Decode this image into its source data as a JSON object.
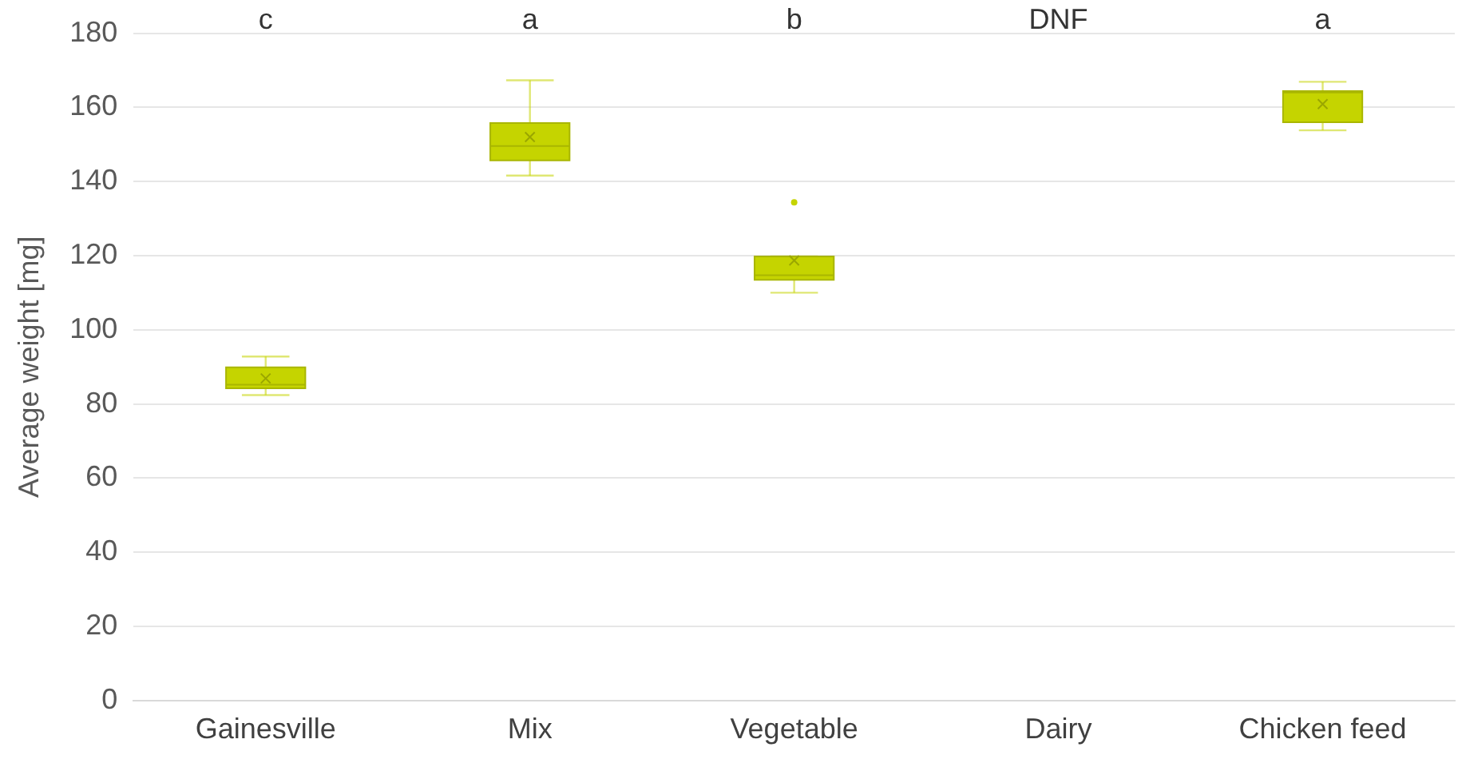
{
  "chart_data": {
    "type": "box",
    "ylabel": "Average weight [mg]",
    "categories": [
      "Gainesville",
      "Mix",
      "Vegetable",
      "Dairy",
      "Chicken feed"
    ],
    "color": "#c5d400",
    "boxes": [
      {
        "low": 82.4,
        "q1": 84.2,
        "median": 85.2,
        "q3": 89.9,
        "high": 92.8,
        "mean": 86.9
      },
      {
        "low": 141.6,
        "q1": 145.7,
        "median": 149.6,
        "q3": 155.8,
        "high": 167.3,
        "mean": 152
      },
      {
        "low": 110,
        "q1": 113.5,
        "median": 114.7,
        "q3": 119.8,
        "high": 119.8,
        "mean": 118.7,
        "outliers": [
          134.4
        ]
      },
      null,
      {
        "low": 153.8,
        "q1": 156,
        "median": 164,
        "q3": 164.4,
        "high": 166.9,
        "mean": 160.9
      }
    ],
    "ylim": [
      0,
      180
    ],
    "yticks": [
      0,
      20,
      40,
      60,
      80,
      100,
      120,
      140,
      160,
      180
    ],
    "grid": "y",
    "legend": false,
    "annotations": [
      "c",
      "a",
      "b",
      "DNF",
      "a"
    ]
  }
}
